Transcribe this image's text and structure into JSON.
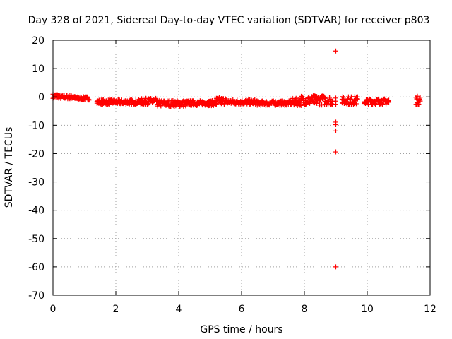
{
  "chart_data": {
    "type": "scatter",
    "title": "Day 328 of 2021, Sidereal Day-to-day VTEC variation (SDTVAR) for receiver p803",
    "xlabel": "GPS time / hours",
    "ylabel": "SDTVAR / TECUs",
    "xlim": [
      0,
      12
    ],
    "ylim": [
      -70,
      20
    ],
    "xticks": [
      0,
      2,
      4,
      6,
      8,
      10,
      12
    ],
    "yticks": [
      -70,
      -60,
      -50,
      -40,
      -30,
      -20,
      -10,
      0,
      10,
      20
    ],
    "grid": true,
    "marker": "+",
    "series": [
      {
        "name": "SDTVAR",
        "color": "#ff0000",
        "segments": [
          {
            "x_start": 0.0,
            "x_end": 0.2,
            "y_center": 0.3,
            "y_spread": 1.6
          },
          {
            "x_start": 0.2,
            "x_end": 0.7,
            "y_center": 0.0,
            "y_spread": 1.4
          },
          {
            "x_start": 0.7,
            "x_end": 1.15,
            "y_center": -0.5,
            "y_spread": 1.2
          },
          {
            "x_start": 1.4,
            "x_end": 2.8,
            "y_center": -1.8,
            "y_spread": 1.6
          },
          {
            "x_start": 2.8,
            "x_end": 3.3,
            "y_center": -1.6,
            "y_spread": 2.2
          },
          {
            "x_start": 3.3,
            "x_end": 4.3,
            "y_center": -2.3,
            "y_spread": 2.2
          },
          {
            "x_start": 4.3,
            "x_end": 5.2,
            "y_center": -2.2,
            "y_spread": 1.8
          },
          {
            "x_start": 5.2,
            "x_end": 5.5,
            "y_center": -1.5,
            "y_spread": 2.6
          },
          {
            "x_start": 5.5,
            "x_end": 6.5,
            "y_center": -1.8,
            "y_spread": 1.8
          },
          {
            "x_start": 6.5,
            "x_end": 7.6,
            "y_center": -2.2,
            "y_spread": 1.6
          },
          {
            "x_start": 7.6,
            "x_end": 7.9,
            "y_center": -1.8,
            "y_spread": 2.6
          },
          {
            "x_start": 7.9,
            "x_end": 8.9,
            "y_center": -1.2,
            "y_spread": 3.4
          },
          {
            "x_start": 9.2,
            "x_end": 9.7,
            "y_center": -1.3,
            "y_spread": 3.0
          },
          {
            "x_start": 9.9,
            "x_end": 10.7,
            "y_center": -1.6,
            "y_spread": 2.0
          },
          {
            "x_start": 11.55,
            "x_end": 11.7,
            "y_center": -1.2,
            "y_spread": 3.0
          }
        ],
        "points": [
          {
            "x": 9.0,
            "y": 16.2
          },
          {
            "x": 9.0,
            "y": -0.4
          },
          {
            "x": 9.0,
            "y": -1.5
          },
          {
            "x": 9.0,
            "y": -2.6
          },
          {
            "x": 9.0,
            "y": -8.9
          },
          {
            "x": 9.0,
            "y": -9.8
          },
          {
            "x": 9.0,
            "y": -12.0
          },
          {
            "x": 9.0,
            "y": -19.4
          },
          {
            "x": 9.0,
            "y": -60.0
          }
        ]
      }
    ]
  }
}
